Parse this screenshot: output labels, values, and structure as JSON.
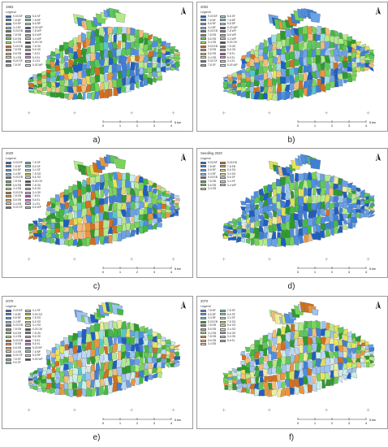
{
  "panels": [
    {
      "id": "a",
      "title": "1963",
      "caption": "a)",
      "legend": {
        "title": "Legend",
        "items": [
          {
            "label": "9-03 BF",
            "color": "#1f5fbf"
          },
          {
            "label": "7-8 BF",
            "color": "#3f7fd6"
          },
          {
            "label": "5-6 BF",
            "color": "#6aa2e6"
          },
          {
            "label": "3-4 BF",
            "color": "#9cc4f0"
          },
          {
            "label": "9-03 EB",
            "color": "#2f9a2f"
          },
          {
            "label": "7-8 EB",
            "color": "#45b845"
          },
          {
            "label": "5-6 EB",
            "color": "#7ad45a"
          },
          {
            "label": "3-4 EB",
            "color": "#b4ea8a"
          },
          {
            "label": "9-03 EB",
            "color": "#d2701f"
          },
          {
            "label": "7-8 EB",
            "color": "#e9963f"
          },
          {
            "label": "5-6 EB",
            "color": "#f3be7a"
          },
          {
            "label": "3-4 EB",
            "color": "#f8deb0"
          },
          {
            "label": "9-03 SF",
            "color": "#1a9aa8"
          },
          {
            "label": "7-8 SF",
            "color": "#58c7c9"
          },
          {
            "label": "5-6 SF",
            "color": "#9ee0dc"
          },
          {
            "label": "7-8 BP",
            "color": "#8fd0c6"
          },
          {
            "label": "5-6 BP",
            "color": "#b9e3da"
          },
          {
            "label": "9-03 WP",
            "color": "#3f3f99"
          },
          {
            "label": "7-8 WP",
            "color": "#7a7ac4"
          },
          {
            "label": "5-6 WP",
            "color": "#b2b2e0"
          },
          {
            "label": "3-4 WP",
            "color": "#d2d2ef"
          },
          {
            "label": "9-03 OK",
            "color": "#444444"
          },
          {
            "label": "7-8 OK",
            "color": "#777777"
          },
          {
            "label": "5-6 OK",
            "color": "#aaaaaa"
          },
          {
            "label": "7-8 EL",
            "color": "#c33cc3"
          },
          {
            "label": "5-6 EL",
            "color": "#e28ce2"
          },
          {
            "label": "3-4 EL",
            "color": "#f1c1f1"
          },
          {
            "label": "9-03 WP",
            "color": "#e6e6e6"
          }
        ]
      }
    },
    {
      "id": "b",
      "title": "2002",
      "caption": "b)",
      "legend": {
        "title": "Legend",
        "items": [
          {
            "label": "9-03 BF",
            "color": "#1f5fbf"
          },
          {
            "label": "7-8 BF",
            "color": "#3f7fd6"
          },
          {
            "label": "5-6 BF",
            "color": "#6aa2e6"
          },
          {
            "label": "3-4 BF",
            "color": "#9cc4f0"
          },
          {
            "label": "9-03 EB",
            "color": "#2f9a2f"
          },
          {
            "label": "7-8 EB",
            "color": "#45b845"
          },
          {
            "label": "5-6 EB",
            "color": "#7ad45a"
          },
          {
            "label": "3-4 EB",
            "color": "#b4ea8a"
          },
          {
            "label": "9-03 EB",
            "color": "#d2701f"
          },
          {
            "label": "7-8 EB",
            "color": "#e9963f"
          },
          {
            "label": "5-6 EB",
            "color": "#f3be7a"
          },
          {
            "label": "3-4 EB",
            "color": "#f8deb0"
          },
          {
            "label": "9-03 SF",
            "color": "#1a9aa8"
          },
          {
            "label": "7-8 SF",
            "color": "#58c7c9"
          },
          {
            "label": "5-6 SF",
            "color": "#9ee0dc"
          },
          {
            "label": "7-8 BP",
            "color": "#8fd0c6"
          },
          {
            "label": "5-6 BP",
            "color": "#b9e3da"
          },
          {
            "label": "9-03 WP",
            "color": "#3f3f99"
          },
          {
            "label": "7-8 WP",
            "color": "#7a7ac4"
          },
          {
            "label": "5-6 WP",
            "color": "#b2b2e0"
          },
          {
            "label": "3-4 WP",
            "color": "#d2d2ef"
          },
          {
            "label": "9-03 OK",
            "color": "#444444"
          },
          {
            "label": "7-8 OK",
            "color": "#777777"
          },
          {
            "label": "5-6 OK",
            "color": "#aaaaaa"
          },
          {
            "label": "7-8 EL",
            "color": "#c33cc3"
          },
          {
            "label": "5-6 EL",
            "color": "#e28ce2"
          },
          {
            "label": "3-4 EL",
            "color": "#f1c1f1"
          },
          {
            "label": "9-03 WP",
            "color": "#e6e6e6"
          }
        ]
      }
    },
    {
      "id": "c",
      "title": "2020",
      "caption": "c)",
      "legend": {
        "title": "Legend",
        "items": [
          {
            "label": "9-03 BF",
            "color": "#1f5fbf"
          },
          {
            "label": "7-8 BF",
            "color": "#3f7fd6"
          },
          {
            "label": "5-6 BF",
            "color": "#6aa2e6"
          },
          {
            "label": "3-4 BF",
            "color": "#9cc4f0"
          },
          {
            "label": "9-03 EB",
            "color": "#2f9a2f"
          },
          {
            "label": "7-8 EB",
            "color": "#45b845"
          },
          {
            "label": "5-6 EB",
            "color": "#7ad45a"
          },
          {
            "label": "3-4 EB",
            "color": "#b4ea8a"
          },
          {
            "label": "9-03 EB",
            "color": "#d2701f"
          },
          {
            "label": "7-8 EB",
            "color": "#e9963f"
          },
          {
            "label": "5-6 EB",
            "color": "#f3be7a"
          },
          {
            "label": "3-4 EB",
            "color": "#f8deb0"
          },
          {
            "label": "9-03 SF",
            "color": "#1a9aa8"
          },
          {
            "label": "7-8 SF",
            "color": "#58c7c9"
          },
          {
            "label": "5-6 SF",
            "color": "#9ee0dc"
          },
          {
            "label": "3-4 SF",
            "color": "#cdeeea"
          },
          {
            "label": "7-8 SO",
            "color": "#dede5a"
          },
          {
            "label": "5-6 SO",
            "color": "#eeee9a"
          },
          {
            "label": "9-03 OK",
            "color": "#444444"
          },
          {
            "label": "7-8 OK",
            "color": "#777777"
          },
          {
            "label": "5-6 OK",
            "color": "#aaaaaa"
          },
          {
            "label": "3-4 OK",
            "color": "#cccccc"
          },
          {
            "label": "7-8 EL",
            "color": "#c33cc3"
          },
          {
            "label": "5-6 EL",
            "color": "#e28ce2"
          },
          {
            "label": "3-4 EL",
            "color": "#f1c1f1"
          },
          {
            "label": "5-6 WP",
            "color": "#b2b2e0"
          }
        ]
      }
    },
    {
      "id": "d",
      "title": "Seedling 2020",
      "caption": "d)",
      "legend": {
        "title": "Legend",
        "items": [
          {
            "label": "9-03 BF",
            "color": "#1f5fbf"
          },
          {
            "label": "7-8 BF",
            "color": "#3f7fd6"
          },
          {
            "label": "5-6 BF",
            "color": "#6aa2e6"
          },
          {
            "label": "3-4 BF",
            "color": "#9cc4f0"
          },
          {
            "label": "9-03 EB",
            "color": "#2f9a2f"
          },
          {
            "label": "7-8 EB",
            "color": "#45b845"
          },
          {
            "label": "5-6 EB",
            "color": "#7ad45a"
          },
          {
            "label": "3-4 EB",
            "color": "#b4ea8a"
          },
          {
            "label": "9-03 EB",
            "color": "#d2701f"
          },
          {
            "label": "7-8 EB",
            "color": "#e9963f"
          },
          {
            "label": "5-6 SO",
            "color": "#eeee9a"
          },
          {
            "label": "3-4 SO",
            "color": "#f6f6c8"
          },
          {
            "label": "5-6 SF",
            "color": "#9ee0dc"
          },
          {
            "label": "3-4 SF",
            "color": "#cdeeea"
          },
          {
            "label": "3-4 WP",
            "color": "#d2d2ef"
          }
        ]
      }
    },
    {
      "id": "e",
      "title": "2070",
      "caption": "e)",
      "legend": {
        "title": "Legend",
        "items": [
          {
            "label": "9-03 BF",
            "color": "#1f5fbf"
          },
          {
            "label": "7-8 BF",
            "color": "#3f7fd6"
          },
          {
            "label": "5-6 BF",
            "color": "#6aa2e6"
          },
          {
            "label": "3-4 BF",
            "color": "#9cc4f0"
          },
          {
            "label": "9-03 EB",
            "color": "#2f9a2f"
          },
          {
            "label": "7-8 EB",
            "color": "#45b845"
          },
          {
            "label": "5-6 EB",
            "color": "#7ad45a"
          },
          {
            "label": "3-4 EB",
            "color": "#b4ea8a"
          },
          {
            "label": "9-03 EB",
            "color": "#d2701f"
          },
          {
            "label": "7-8 EB",
            "color": "#e9963f"
          },
          {
            "label": "5-6 EB",
            "color": "#f3be7a"
          },
          {
            "label": "3-4 EB",
            "color": "#f8deb0"
          },
          {
            "label": "9-03 SF",
            "color": "#1a9aa8"
          },
          {
            "label": "7-8 SF",
            "color": "#58c7c9"
          },
          {
            "label": "5-6 SF",
            "color": "#9ee0dc"
          },
          {
            "label": "3-4 SF",
            "color": "#cdeeea"
          },
          {
            "label": "9-03 SO",
            "color": "#c7c72a"
          },
          {
            "label": "7-8 SO",
            "color": "#dede5a"
          },
          {
            "label": "5-6 SO",
            "color": "#eeee9a"
          },
          {
            "label": "3-4 SO",
            "color": "#f6f6c8"
          },
          {
            "label": "9-03 OK",
            "color": "#444444"
          },
          {
            "label": "7-8 OK",
            "color": "#777777"
          },
          {
            "label": "5-6 OK",
            "color": "#aaaaaa"
          },
          {
            "label": "7-8 EL",
            "color": "#c33cc3"
          },
          {
            "label": "5-6 EL",
            "color": "#e28ce2"
          },
          {
            "label": "9-03 BP",
            "color": "#5fb0a8"
          },
          {
            "label": "7-8 BP",
            "color": "#8fd0c6"
          },
          {
            "label": "5-6 BP",
            "color": "#b9e3da"
          },
          {
            "label": "9-03 WP",
            "color": "#3f3f99"
          }
        ]
      }
    },
    {
      "id": "f",
      "title": "2070",
      "caption": "f)",
      "legend": {
        "title": "Legend",
        "items": [
          {
            "label": "7-8 BF",
            "color": "#3f7fd6"
          },
          {
            "label": "5-6 BF",
            "color": "#6aa2e6"
          },
          {
            "label": "3-4 BF",
            "color": "#9cc4f0"
          },
          {
            "label": "9-03 EB",
            "color": "#2f9a2f"
          },
          {
            "label": "7-8 EB",
            "color": "#45b845"
          },
          {
            "label": "5-6 EB",
            "color": "#7ad45a"
          },
          {
            "label": "3-4 EB",
            "color": "#b4ea8a"
          },
          {
            "label": "7-8 EB",
            "color": "#e9963f"
          },
          {
            "label": "5-6 EB",
            "color": "#f3be7a"
          },
          {
            "label": "3-4 EB",
            "color": "#f8deb0"
          },
          {
            "label": "7-8 SF",
            "color": "#58c7c9"
          },
          {
            "label": "5-6 SF",
            "color": "#9ee0dc"
          },
          {
            "label": "3-4 SF",
            "color": "#cdeeea"
          },
          {
            "label": "7-8 SO",
            "color": "#dede5a"
          },
          {
            "label": "5-6 SO",
            "color": "#eeee9a"
          },
          {
            "label": "3-4 SO",
            "color": "#f6f6c8"
          },
          {
            "label": "5-6 OK",
            "color": "#aaaaaa"
          },
          {
            "label": "3-4 OK",
            "color": "#cccccc"
          },
          {
            "label": "5-6 EL",
            "color": "#e28ce2"
          }
        ]
      }
    }
  ],
  "scale": {
    "ticks": [
      "0",
      "1",
      "2",
      "3",
      "4"
    ],
    "end_label": "5 km"
  },
  "north_arrow_icon": "north-arrow-icon",
  "palette": {
    "forest_green": "#49b849",
    "forest_blue": "#5a93dc",
    "forest_orange": "#e7a24a",
    "forest_yellow": "#e6e65a"
  }
}
